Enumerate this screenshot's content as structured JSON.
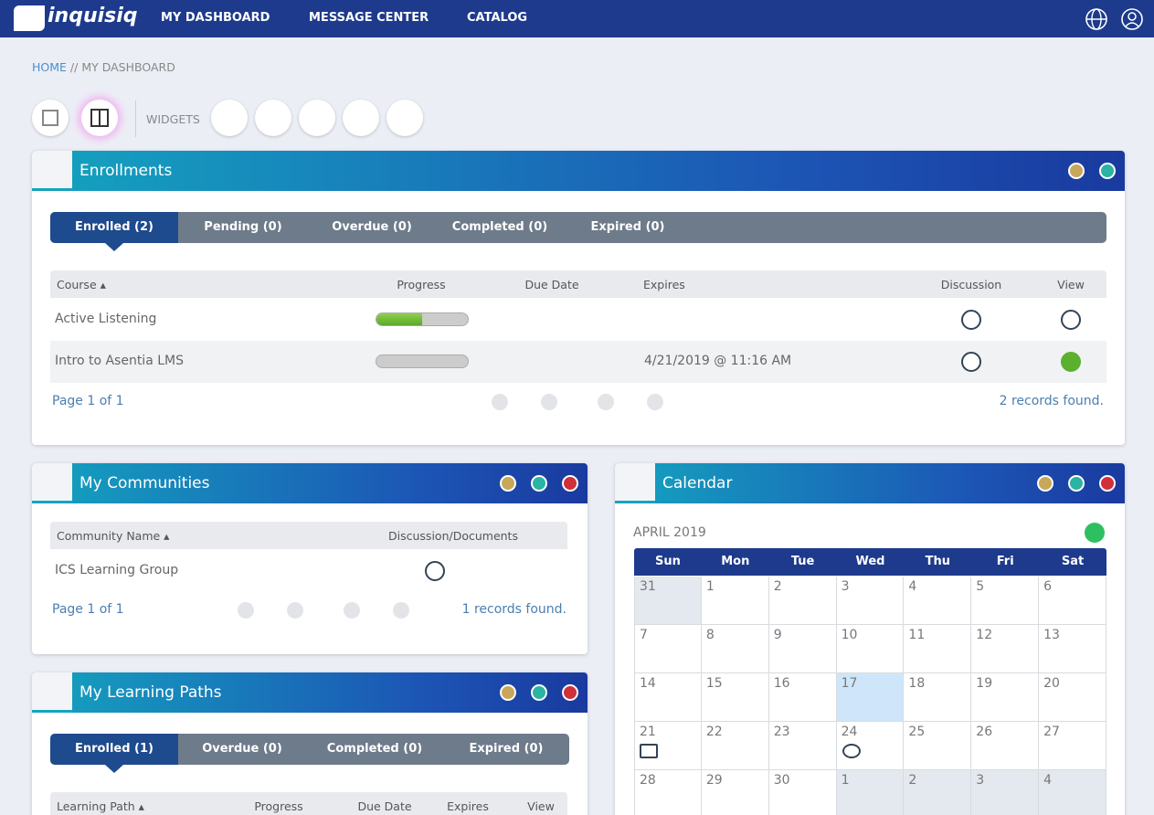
{
  "nav": {
    "brand": "inquisiq",
    "items": [
      "MY DASHBOARD",
      "MESSAGE CENTER",
      "CATALOG"
    ]
  },
  "breadcrumb": {
    "home": "HOME",
    "separator": "//",
    "current": "MY DASHBOARD"
  },
  "toolbar": {
    "label": "WIDGETS"
  },
  "enrollments": {
    "title": "Enrollments",
    "tabs": [
      "Enrolled (2)",
      "Pending (0)",
      "Overdue (0)",
      "Completed (0)",
      "Expired (0)"
    ],
    "columns": [
      "Course",
      "Progress",
      "Due Date",
      "Expires",
      "Discussion",
      "View"
    ],
    "rows": [
      {
        "course": "Active Listening",
        "progress": 50
      },
      {
        "course": "Intro to Asentia LMS",
        "progress": 0,
        "expires": "4/21/2019 @ 11:16 AM"
      }
    ],
    "pager": {
      "page": "Page 1 of 1",
      "records": "2 records found."
    }
  },
  "communities": {
    "title": "My Communities",
    "columns": [
      "Community Name",
      "Discussion/Documents"
    ],
    "rows": [
      {
        "name": "ICS Learning Group"
      }
    ],
    "pager": {
      "page": "Page 1 of 1",
      "records": "1 records found."
    }
  },
  "learning_paths": {
    "title": "My Learning Paths",
    "tabs": [
      "Enrolled (1)",
      "Overdue (0)",
      "Completed (0)",
      "Expired (0)"
    ],
    "columns": [
      "Learning Path",
      "Progress",
      "Due Date",
      "Expires",
      "View"
    ]
  },
  "calendar": {
    "title": "Calendar",
    "month": "APRIL 2019",
    "weekdays": [
      "Sun",
      "Mon",
      "Tue",
      "Wed",
      "Thu",
      "Fri",
      "Sat"
    ],
    "leading_days": [
      31
    ],
    "days": [
      1,
      2,
      3,
      4,
      5,
      6,
      7,
      8,
      9,
      10,
      11,
      12,
      13,
      14,
      15,
      16,
      17,
      18,
      19,
      20,
      21,
      22,
      23,
      24,
      25,
      26,
      27,
      28,
      29,
      30
    ],
    "trailing_days": [
      1,
      2,
      3,
      4
    ]
  }
}
